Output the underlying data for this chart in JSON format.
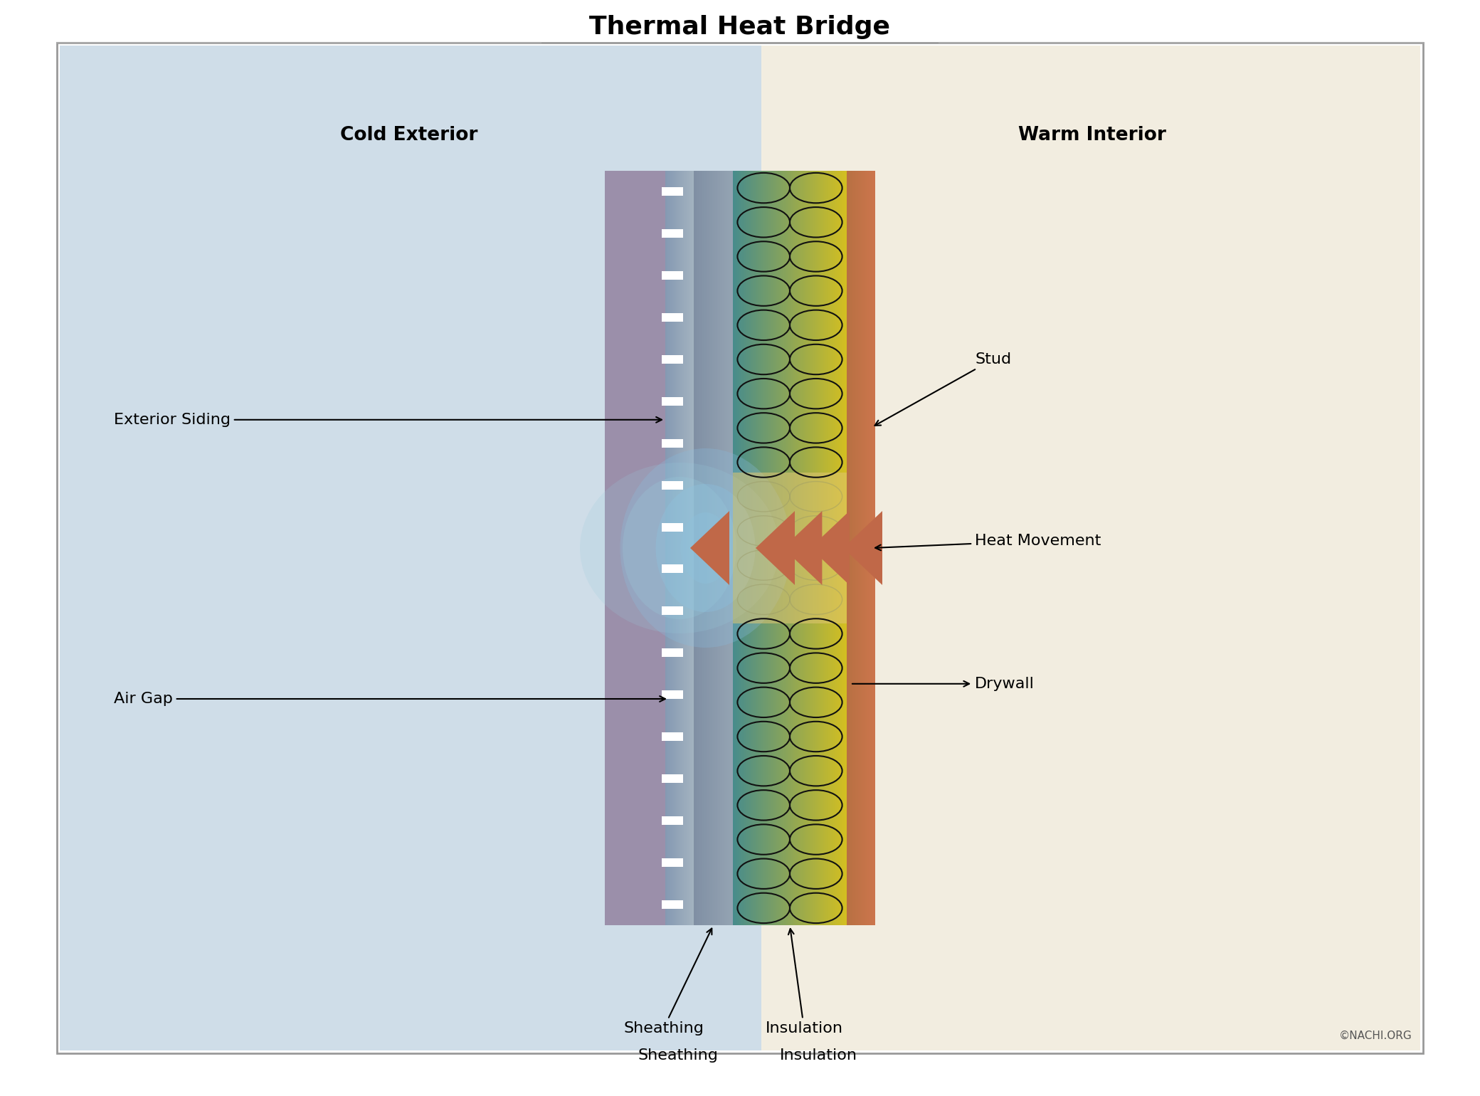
{
  "title": "Thermal Heat Bridge",
  "title_fontsize": 26,
  "bg_color": "#ffffff",
  "cold_bg": "#cfdde8",
  "warm_bg": "#f2ede0",
  "border_color": "#aaaaaa",
  "labels": {
    "cold_exterior": "Cold Exterior",
    "warm_interior": "Warm Interior",
    "exterior_siding": "Exterior Siding",
    "air_gap": "Air Gap",
    "sheathing": "Sheathing",
    "insulation": "Insulation",
    "stud": "Stud",
    "heat_movement": "Heat Movement",
    "drywall": "Drywall",
    "copyright": "©NACHI.ORG"
  },
  "siding_color": "#9b8faa",
  "gap_color_left": "#8fa8bc",
  "gap_color_right": "#a0b8cc",
  "sheathing_color": "#7888a0",
  "drywall_color": "#c87858",
  "arrow_color": "#c06848"
}
